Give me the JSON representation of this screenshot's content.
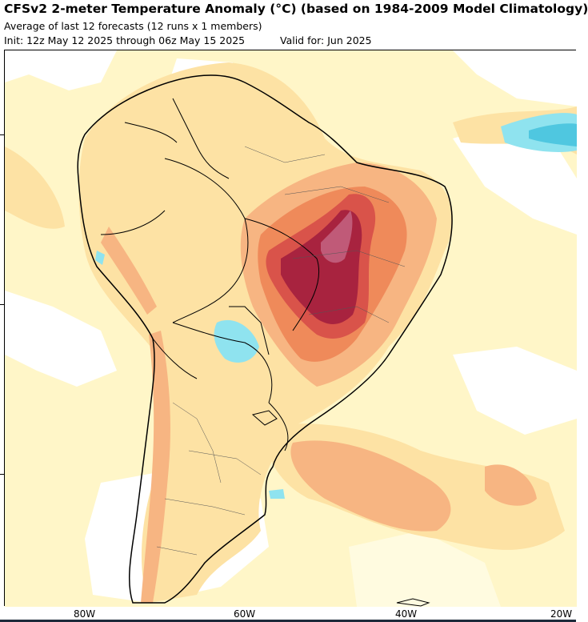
{
  "header": {
    "title": "CFSv2 2-meter Temperature Anomaly (°C) (based on 1984-2009 Model Climatology)",
    "subtitle": "Average of last 12 forecasts (12 runs x 1 members)",
    "init": "Init: 12z May 12 2025 through 06z May 15 2025",
    "valid": "Valid for: Jun 2025"
  },
  "axes": {
    "longitude_labels": [
      "80W",
      "60W",
      "40W",
      "20W"
    ]
  },
  "colors": {
    "land_neutral": "#ffffff",
    "slight_warm": "#fff2b8",
    "warm": "#fde2a4",
    "warmer": "#f7b582",
    "hot": "#ef8a5a",
    "very_hot": "#d9534a",
    "extreme": "#a8233f",
    "cool": "#8fe3ef",
    "colder": "#4fc7e0"
  }
}
